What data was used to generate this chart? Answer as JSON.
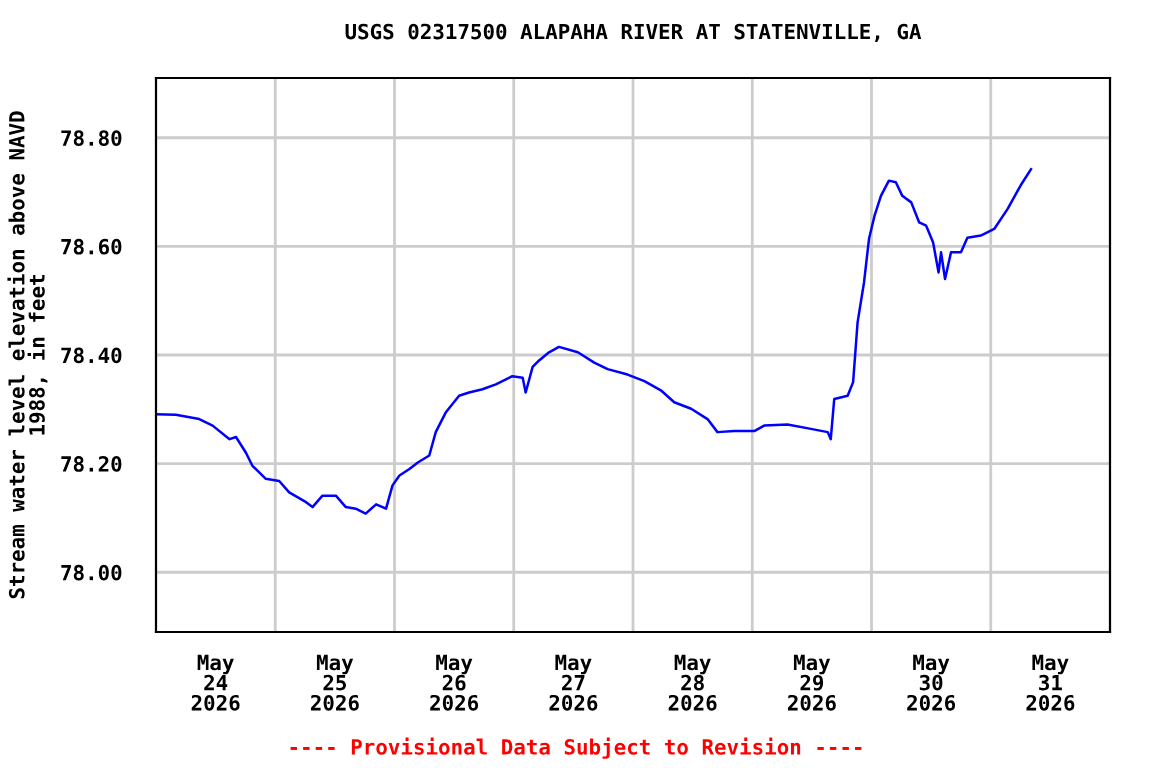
{
  "chart_data": {
    "type": "line",
    "title": "USGS 02317500 ALAPAHA RIVER AT STATENVILLE, GA",
    "ylabel": "Stream water level elevation above NAVD\n1988, in feet",
    "annotations": [
      "---- Provisional Data Subject to Revision ----"
    ],
    "x": [
      "2026-05-24T00:00",
      "2026-05-24T04:00",
      "2026-05-24T08:42",
      "2026-05-24T11:24",
      "2026-05-24T14:48",
      "2026-05-24T16:06",
      "2026-05-24T18:06",
      "2026-05-24T19:24",
      "2026-05-24T22:06",
      "2026-05-25T00:48",
      "2026-05-25T02:48",
      "2026-05-25T06:12",
      "2026-05-25T07:30",
      "2026-05-25T09:30",
      "2026-05-25T12:12",
      "2026-05-25T14:12",
      "2026-05-25T16:12",
      "2026-05-25T18:12",
      "2026-05-25T20:18",
      "2026-05-25T22:18",
      "2026-05-25T23:36",
      "2026-05-26T01:00",
      "2026-05-26T03:00",
      "2026-05-26T04:42",
      "2026-05-26T07:00",
      "2026-05-26T08:18",
      "2026-05-26T10:18",
      "2026-05-26T13:00",
      "2026-05-26T15:00",
      "2026-05-26T17:42",
      "2026-05-26T20:24",
      "2026-05-26T23:42",
      "2026-05-27T01:48",
      "2026-05-27T02:24",
      "2026-05-27T03:48",
      "2026-05-27T05:06",
      "2026-05-27T07:06",
      "2026-05-27T09:06",
      "2026-05-27T12:54",
      "2026-05-27T16:12",
      "2026-05-27T18:54",
      "2026-05-27T22:54",
      "2026-05-28T02:18",
      "2026-05-28T05:36",
      "2026-05-28T08:18",
      "2026-05-28T11:42",
      "2026-05-28T15:00",
      "2026-05-28T17:00",
      "2026-05-28T20:24",
      "2026-05-29T00:24",
      "2026-05-29T02:24",
      "2026-05-29T07:06",
      "2026-05-29T11:48",
      "2026-05-29T15:12",
      "2026-05-29T15:48",
      "2026-05-29T16:30",
      "2026-05-29T19:12",
      "2026-05-29T20:18",
      "2026-05-29T21:12",
      "2026-05-29T22:30",
      "2026-05-29T23:30",
      "2026-05-30T00:36",
      "2026-05-30T01:54",
      "2026-05-30T03:30",
      "2026-05-30T04:54",
      "2026-05-30T06:12",
      "2026-05-30T08:00",
      "2026-05-30T09:36",
      "2026-05-30T11:00",
      "2026-05-30T12:24",
      "2026-05-30T13:30",
      "2026-05-30T14:00",
      "2026-05-30T14:48",
      "2026-05-30T16:00",
      "2026-05-30T18:00",
      "2026-05-30T19:18",
      "2026-05-30T22:00",
      "2026-05-31T00:42",
      "2026-05-31T03:24",
      "2026-05-31T06:00",
      "2026-05-31T08:06"
    ],
    "series": [
      {
        "color": "#0000ff",
        "values": [
          78.291,
          78.29,
          78.282,
          78.27,
          78.245,
          78.249,
          78.22,
          78.196,
          78.172,
          78.168,
          78.147,
          78.129,
          78.12,
          78.141,
          78.141,
          78.12,
          78.117,
          78.108,
          78.125,
          78.117,
          78.16,
          78.178,
          78.19,
          78.202,
          78.215,
          78.258,
          78.294,
          78.325,
          78.331,
          78.337,
          78.346,
          78.361,
          78.358,
          78.331,
          78.378,
          78.39,
          78.405,
          78.415,
          78.405,
          78.386,
          78.374,
          78.364,
          78.352,
          78.335,
          78.313,
          78.301,
          78.282,
          78.258,
          78.26,
          78.26,
          78.27,
          78.272,
          78.264,
          78.258,
          78.245,
          78.319,
          78.325,
          78.35,
          78.46,
          78.534,
          78.614,
          78.656,
          78.693,
          78.721,
          78.718,
          78.693,
          78.681,
          78.644,
          78.638,
          78.607,
          78.552,
          78.589,
          78.54,
          78.589,
          78.589,
          78.616,
          78.62,
          78.632,
          78.669,
          78.712,
          78.742
        ]
      }
    ],
    "xlim": [
      "2026-05-24T00:00",
      "2026-06-01T00:00"
    ],
    "xticks": [
      {
        "value": "2026-05-24T12:00",
        "label": "May\n24\n2026"
      },
      {
        "value": "2026-05-25T00:00",
        "label": null
      },
      {
        "value": "2026-05-25T12:00",
        "label": "May\n25\n2026"
      },
      {
        "value": "2026-05-26T00:00",
        "label": null
      },
      {
        "value": "2026-05-26T12:00",
        "label": "May\n26\n2026"
      },
      {
        "value": "2026-05-27T00:00",
        "label": null
      },
      {
        "value": "2026-05-27T12:00",
        "label": "May\n27\n2026"
      },
      {
        "value": "2026-05-28T00:00",
        "label": null
      },
      {
        "value": "2026-05-28T12:00",
        "label": "May\n28\n2026"
      },
      {
        "value": "2026-05-29T00:00",
        "label": null
      },
      {
        "value": "2026-05-29T12:00",
        "label": "May\n29\n2026"
      },
      {
        "value": "2026-05-30T00:00",
        "label": null
      },
      {
        "value": "2026-05-30T12:00",
        "label": "May\n30\n2026"
      },
      {
        "value": "2026-05-31T00:00",
        "label": null
      },
      {
        "value": "2026-05-31T12:00",
        "label": "May\n31\n2026"
      }
    ],
    "ylim": [
      77.89,
      78.91
    ],
    "yticks": [
      {
        "value": 78.0,
        "label": "78.00"
      },
      {
        "value": 78.2,
        "label": "78.20"
      },
      {
        "value": 78.4,
        "label": "78.40"
      },
      {
        "value": 78.6,
        "label": "78.60"
      },
      {
        "value": 78.8,
        "label": "78.80"
      }
    ],
    "grid": true,
    "marker": "none",
    "line_style": "solid"
  }
}
